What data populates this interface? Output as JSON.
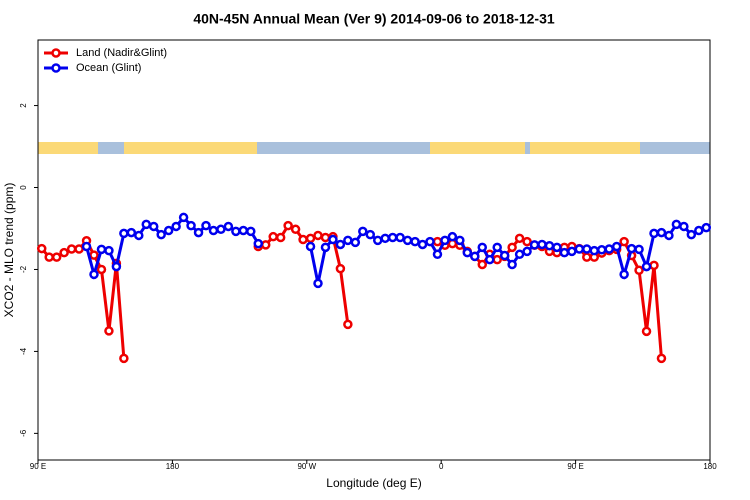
{
  "chart_data": {
    "type": "line",
    "title": "40N-45N Annual Mean (Ver 9)   2014-09-06 to 2018-12-31",
    "x_label": "Longitude (deg E)",
    "y_label": "XCO2 - MLO trend (ppm)",
    "xlim": [
      90,
      540
    ],
    "ylim": [
      -6.65,
      3.6
    ],
    "xticks": [
      {
        "value": 90,
        "label": "90 E"
      },
      180,
      {
        "value": 270,
        "label": "90 W"
      },
      {
        "value": 360,
        "label": "0"
      },
      {
        "value": 450,
        "label": "90 E"
      },
      {
        "value": 540,
        "label": "180"
      }
    ],
    "yticks": [
      2,
      0,
      -2,
      -4,
      -6
    ],
    "legend": "top-left",
    "series": [
      {
        "name": "Land (Nadir&Glint)",
        "color": "#ee0000",
        "x": [
          92.5,
          97.5,
          102.5,
          107.5,
          112.5,
          117.5,
          122.5,
          127.5,
          132.5,
          137.5,
          142.5,
          147.5,
          152.5,
          237.5,
          242.5,
          247.5,
          252.5,
          257.5,
          262.5,
          267.5,
          272.5,
          277.5,
          282.5,
          287.5,
          292.5,
          297.5,
          302.5,
          357.5,
          362.5,
          367.5,
          372.5,
          377.5,
          382.5,
          387.5,
          392.5,
          397.5,
          402.5,
          407.5,
          412.5,
          417.5,
          422.5,
          427.5,
          432.5,
          437.5,
          442.5,
          447.5,
          452.5,
          457.5,
          462.5,
          467.5,
          472.5,
          477.5,
          482.5,
          487.5,
          492.5,
          497.5,
          502.5,
          507.5
        ],
        "values": [
          -1.49,
          -1.7,
          -1.7,
          -1.59,
          -1.5,
          -1.5,
          -1.3,
          -1.65,
          -2.0,
          -3.5,
          -1.85,
          -4.17,
          null,
          -1.44,
          -1.4,
          -1.2,
          -1.22,
          -0.93,
          -1.02,
          -1.27,
          -1.24,
          -1.17,
          -1.22,
          -1.2,
          -1.98,
          -3.34,
          null,
          -1.32,
          -1.41,
          -1.37,
          -1.41,
          -1.56,
          -1.68,
          -1.88,
          -1.63,
          -1.76,
          -1.68,
          -1.46,
          -1.24,
          -1.32,
          -1.41,
          -1.44,
          -1.56,
          -1.59,
          -1.46,
          -1.44,
          -1.49,
          -1.7,
          -1.7,
          -1.6,
          -1.54,
          -1.51,
          -1.32,
          -1.66,
          -2.02,
          -3.51,
          -1.9,
          -4.17
        ]
      },
      {
        "name": "Ocean (Glint)",
        "color": "#0000ee",
        "x": [
          122.5,
          127.5,
          132.5,
          137.5,
          142.5,
          147.5,
          152.5,
          157.5,
          162.5,
          167.5,
          172.5,
          177.5,
          182.5,
          187.5,
          192.5,
          197.5,
          202.5,
          207.5,
          212.5,
          217.5,
          222.5,
          227.5,
          232.5,
          237.5,
          242.5,
          272.5,
          277.5,
          282.5,
          287.5,
          292.5,
          297.5,
          302.5,
          307.5,
          312.5,
          317.5,
          322.5,
          327.5,
          332.5,
          337.5,
          342.5,
          347.5,
          352.5,
          357.5,
          362.5,
          367.5,
          372.5,
          377.5,
          382.5,
          387.5,
          392.5,
          397.5,
          402.5,
          407.5,
          412.5,
          417.5,
          422.5,
          427.5,
          432.5,
          437.5,
          442.5,
          447.5,
          452.5,
          457.5,
          462.5,
          467.5,
          472.5,
          477.5,
          482.5,
          487.5,
          492.5,
          497.5,
          502.5,
          507.5,
          512.5,
          517.5,
          522.5,
          527.5,
          532.5,
          537.5
        ],
        "values": [
          -1.44,
          -2.12,
          -1.51,
          -1.54,
          -1.93,
          -1.12,
          -1.1,
          -1.17,
          -0.9,
          -0.95,
          -1.15,
          -1.05,
          -0.95,
          -0.73,
          -0.93,
          -1.1,
          -0.93,
          -1.05,
          -1.02,
          -0.95,
          -1.07,
          -1.05,
          -1.07,
          -1.37,
          null,
          -1.44,
          -2.34,
          -1.46,
          -1.27,
          -1.39,
          -1.29,
          -1.34,
          -1.07,
          -1.15,
          -1.29,
          -1.24,
          -1.22,
          -1.22,
          -1.29,
          -1.32,
          -1.39,
          -1.32,
          -1.63,
          -1.29,
          -1.2,
          -1.29,
          -1.59,
          -1.68,
          -1.46,
          -1.76,
          -1.46,
          -1.66,
          -1.88,
          -1.63,
          -1.56,
          -1.4,
          -1.39,
          -1.42,
          -1.46,
          -1.59,
          -1.56,
          -1.5,
          -1.5,
          -1.54,
          -1.52,
          -1.5,
          -1.44,
          -2.12,
          -1.49,
          -1.51,
          -1.93,
          -1.12,
          -1.1,
          -1.17,
          -0.9,
          -0.95,
          -1.15,
          -1.05,
          -0.98
        ]
      }
    ]
  }
}
